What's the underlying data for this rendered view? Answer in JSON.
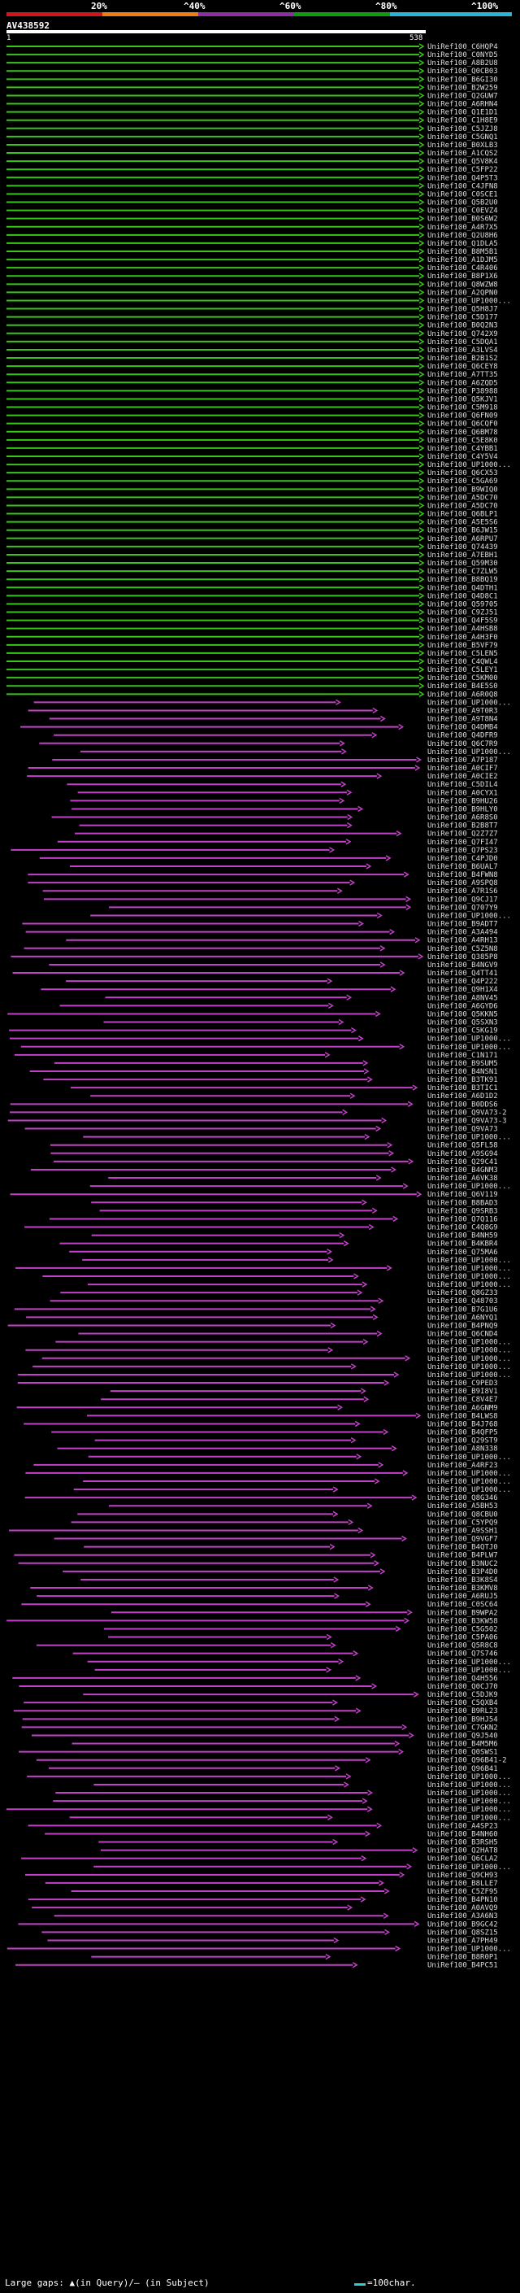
{
  "query_name": "AV438592",
  "query_start": "1",
  "query_end": "538",
  "scale": {
    "labels": [
      "20%",
      "^40%",
      "^60%",
      "^80%",
      "^100%"
    ],
    "colors": [
      "#d4141b",
      "#f07d10",
      "#8b2fa2",
      "#109b10",
      "#27b6d6"
    ]
  },
  "colors": {
    "green": "#39c41a",
    "magenta": "#c340c8",
    "background": "#000000"
  },
  "hits": [
    "UniRef100_C6HQP4",
    "UniRef100_C0NYD5",
    "UniRef100_A8B2U8",
    "UniRef100_Q0CB03",
    "UniRef100_B6GI30",
    "UniRef100_B2W259",
    "UniRef100_Q2GUW7",
    "UniRef100_A6RHN4",
    "UniRef100_Q1E1D1",
    "UniRef100_C1H8E9",
    "UniRef100_C5JZJ8",
    "UniRef100_C5GNQ1",
    "UniRef100_B0XLB3",
    "UniRef100_A1CQS2",
    "UniRef100_Q5V8K4",
    "UniRef100_C5FP22",
    "UniRef100_Q4P5T3",
    "UniRef100_C4JFN8",
    "UniRef100_C0SCE1",
    "UniRef100_Q5B2U0",
    "UniRef100_C0EVZ4",
    "UniRef100_B0S6W2",
    "UniRef100_A4R7X5",
    "UniRef100_Q2U8H6",
    "UniRef100_Q1DLA5",
    "UniRef100_B8M5B1",
    "UniRef100_A1DJM5",
    "UniRef100_C4R406",
    "UniRef100_B8P1X6",
    "UniRef100_Q8WZW8",
    "UniRef100_A2QPN0",
    "UniRef100_UP1000...",
    "UniRef100_Q5H8J7",
    "UniRef100_C5D177",
    "UniRef100_B0Q2N3",
    "UniRef100_Q742X9",
    "UniRef100_C5DQA1",
    "UniRef100_A3LVS4",
    "UniRef100_B2B1S2",
    "UniRef100_Q6CEY8",
    "UniRef100_A7TT35",
    "UniRef100_A6ZQD5",
    "UniRef100_P38988",
    "UniRef100_Q5KJV1",
    "UniRef100_C5M918",
    "UniRef100_Q6FN09",
    "UniRef100_Q6CQF0",
    "UniRef100_Q6BM78",
    "UniRef100_C5E8K0",
    "UniRef100_C4YBB1",
    "UniRef100_C4Y5V4",
    "UniRef100_UP1000...",
    "UniRef100_Q6CX53",
    "UniRef100_C5GA69",
    "UniRef100_B9WIQ0",
    "UniRef100_A5DC70",
    "UniRef100_A5DC70",
    "UniRef100_Q6BLP1",
    "UniRef100_A5E5S6",
    "UniRef100_B6JW15",
    "UniRef100_A6RPU7",
    "UniRef100_Q74439",
    "UniRef100_A7EBH1",
    "UniRef100_Q59M30",
    "UniRef100_C7ZLW5",
    "UniRef100_B8BQ19",
    "UniRef100_Q4DTH1",
    "UniRef100_Q4D8C1",
    "UniRef100_Q59705",
    "UniRef100_C9ZJ51",
    "UniRef100_Q4F5S9",
    "UniRef100_A4HSB8",
    "UniRef100_A4H3F0",
    "UniRef100_B5VF79",
    "UniRef100_C5LEN5",
    "UniRef100_C4QWL4",
    "UniRef100_C5LEY1",
    "UniRef100_C5KM00",
    "UniRef100_B4E5S0",
    "UniRef100_A6R0Q8",
    "UniRef100_UP1000...",
    "UniRef100_A9T0R3",
    "UniRef100_A9T8N4",
    "UniRef100_Q4DMB4",
    "UniRef100_Q4DFR9",
    "UniRef100_Q6C7R9",
    "UniRef100_UP1000...",
    "UniRef100_A7P187",
    "UniRef100_A0CIF7",
    "UniRef100_A0CIE2",
    "UniRef100_C5DIL4",
    "UniRef100_A0CYX1",
    "UniRef100_B9HU26",
    "UniRef100_B9HLY0",
    "UniRef100_A6R8S0",
    "UniRef100_B2B8T7",
    "UniRef100_Q2Z7Z7",
    "UniRef100_Q7FI47",
    "UniRef100_Q7PS23",
    "UniRef100_C4PJD0",
    "UniRef100_B6UAL7",
    "UniRef100_B4FWN8",
    "UniRef100_A9SPQ8",
    "UniRef100_A7R1S6",
    "UniRef100_Q9CJ17",
    "UniRef100_Q707Y9",
    "UniRef100_UP1000...",
    "UniRef100_B9ADT7",
    "UniRef100_A3A494",
    "UniRef100_A4RH13",
    "UniRef100_C5Z5N8",
    "UniRef100_Q385P8",
    "UniRef100_B4NGV9",
    "UniRef100_Q4TT41",
    "UniRef100_Q4P222",
    "UniRef100_Q9H1X4",
    "UniRef100_A8NV45",
    "UniRef100_A6GYD6",
    "UniRef100_Q5KKN5",
    "UniRef100_Q5SXN3",
    "UniRef100_C5KG19",
    "UniRef100_UP1000...",
    "UniRef100_UP1000...",
    "UniRef100_C1N171",
    "UniRef100_B9SUM5",
    "UniRef100_B4NSN1",
    "UniRef100_B3TK91",
    "UniRef100_B3TIC1",
    "UniRef100_A6D1D2",
    "UniRef100_B0DDS6",
    "UniRef100_Q9VA73-2",
    "UniRef100_Q9VA73-3",
    "UniRef100_Q9VA73",
    "UniRef100_UP1000...",
    "UniRef100_Q5FL58",
    "UniRef100_A9SG94",
    "UniRef100_Q29C41",
    "UniRef100_B4GNM3",
    "UniRef100_A6VK38",
    "UniRef100_UP1000...",
    "UniRef100_Q6V119",
    "UniRef100_B8BAD3",
    "UniRef100_Q9SRB3",
    "UniRef100_Q7Q116",
    "UniRef100_C4Q8G9",
    "UniRef100_B4NH59",
    "UniRef100_B4KBR4",
    "UniRef100_Q75MA6",
    "UniRef100_UP1000...",
    "UniRef100_UP1000...",
    "UniRef100_UP1000...",
    "UniRef100_UP1000...",
    "UniRef100_Q8GZ33",
    "UniRef100_Q48703",
    "UniRef100_B7G1U6",
    "UniRef100_A6NYQ1",
    "UniRef100_B4PNQ9",
    "UniRef100_Q6CND4",
    "UniRef100_UP1000...",
    "UniRef100_UP1000...",
    "UniRef100_UP1000...",
    "UniRef100_UP1000...",
    "UniRef100_UP1000...",
    "UniRef100_C9PED3",
    "UniRef100_B9I8V1",
    "UniRef100_C8V4E7",
    "UniRef100_A6GNM9",
    "UniRef100_B4LWS8",
    "UniRef100_B4J768",
    "UniRef100_B4QFP5",
    "UniRef100_Q29ST9",
    "UniRef100_A8N338",
    "UniRef100_UP1000...",
    "UniRef100_A4RF23",
    "UniRef100_UP1000...",
    "UniRef100_UP1000...",
    "UniRef100_UP1000...",
    "UniRef100_Q8G346",
    "UniRef100_A5BH53",
    "UniRef100_Q8CBU0",
    "UniRef100_C5YPQ9",
    "UniRef100_A9SSH1",
    "UniRef100_Q9VGF7",
    "UniRef100_B4QTJ0",
    "UniRef100_B4PLW7",
    "UniRef100_B3NUC2",
    "UniRef100_B3P4D0",
    "UniRef100_B3K8S4",
    "UniRef100_B3KMV8",
    "UniRef100_A6RUJ5",
    "UniRef100_C0SC64",
    "UniRef100_B9WPA2",
    "UniRef100_B3KW58",
    "UniRef100_C5G502",
    "UniRef100_C5PA06",
    "UniRef100_Q5R8C8",
    "UniRef100_Q7S746",
    "UniRef100_UP1000...",
    "UniRef100_UP1000...",
    "UniRef100_Q4H556",
    "UniRef100_Q0CJ70",
    "UniRef100_C5DJK9",
    "UniRef100_C5QXB4",
    "UniRef100_B9RL23",
    "UniRef100_B9HJ54",
    "UniRef100_C7GKN2",
    "UniRef100_Q9J540",
    "UniRef100_B4M5M6",
    "UniRef100_Q0SWS1",
    "UniRef100_Q96B41-2",
    "UniRef100_Q96B41",
    "UniRef100_UP1000...",
    "UniRef100_UP1000...",
    "UniRef100_UP1000...",
    "UniRef100_UP1000...",
    "UniRef100_UP1000...",
    "UniRef100_UP1000...",
    "UniRef100_A4SP23",
    "UniRef100_B4NH60",
    "UniRef100_B3RSH5",
    "UniRef100_Q2HAT8",
    "UniRef100_Q6CLA2",
    "UniRef100_UP1000...",
    "UniRef100_Q9CH93",
    "UniRef100_B8LLE7",
    "UniRef100_C5ZF95",
    "UniRef100_B4PN10",
    "UniRef100_A0AVQ9",
    "UniRef100_A3A6N3",
    "UniRef100_B9GC42",
    "UniRef100_Q8SZ15",
    "UniRef100_A7PH49",
    "UniRef100_UP1000...",
    "UniRef100_B8R0P1",
    "UniRef100_B4PC51"
  ],
  "legend": {
    "left": "Large gaps: ▲(in Query)/– (in Subject)",
    "right": "=100char."
  }
}
